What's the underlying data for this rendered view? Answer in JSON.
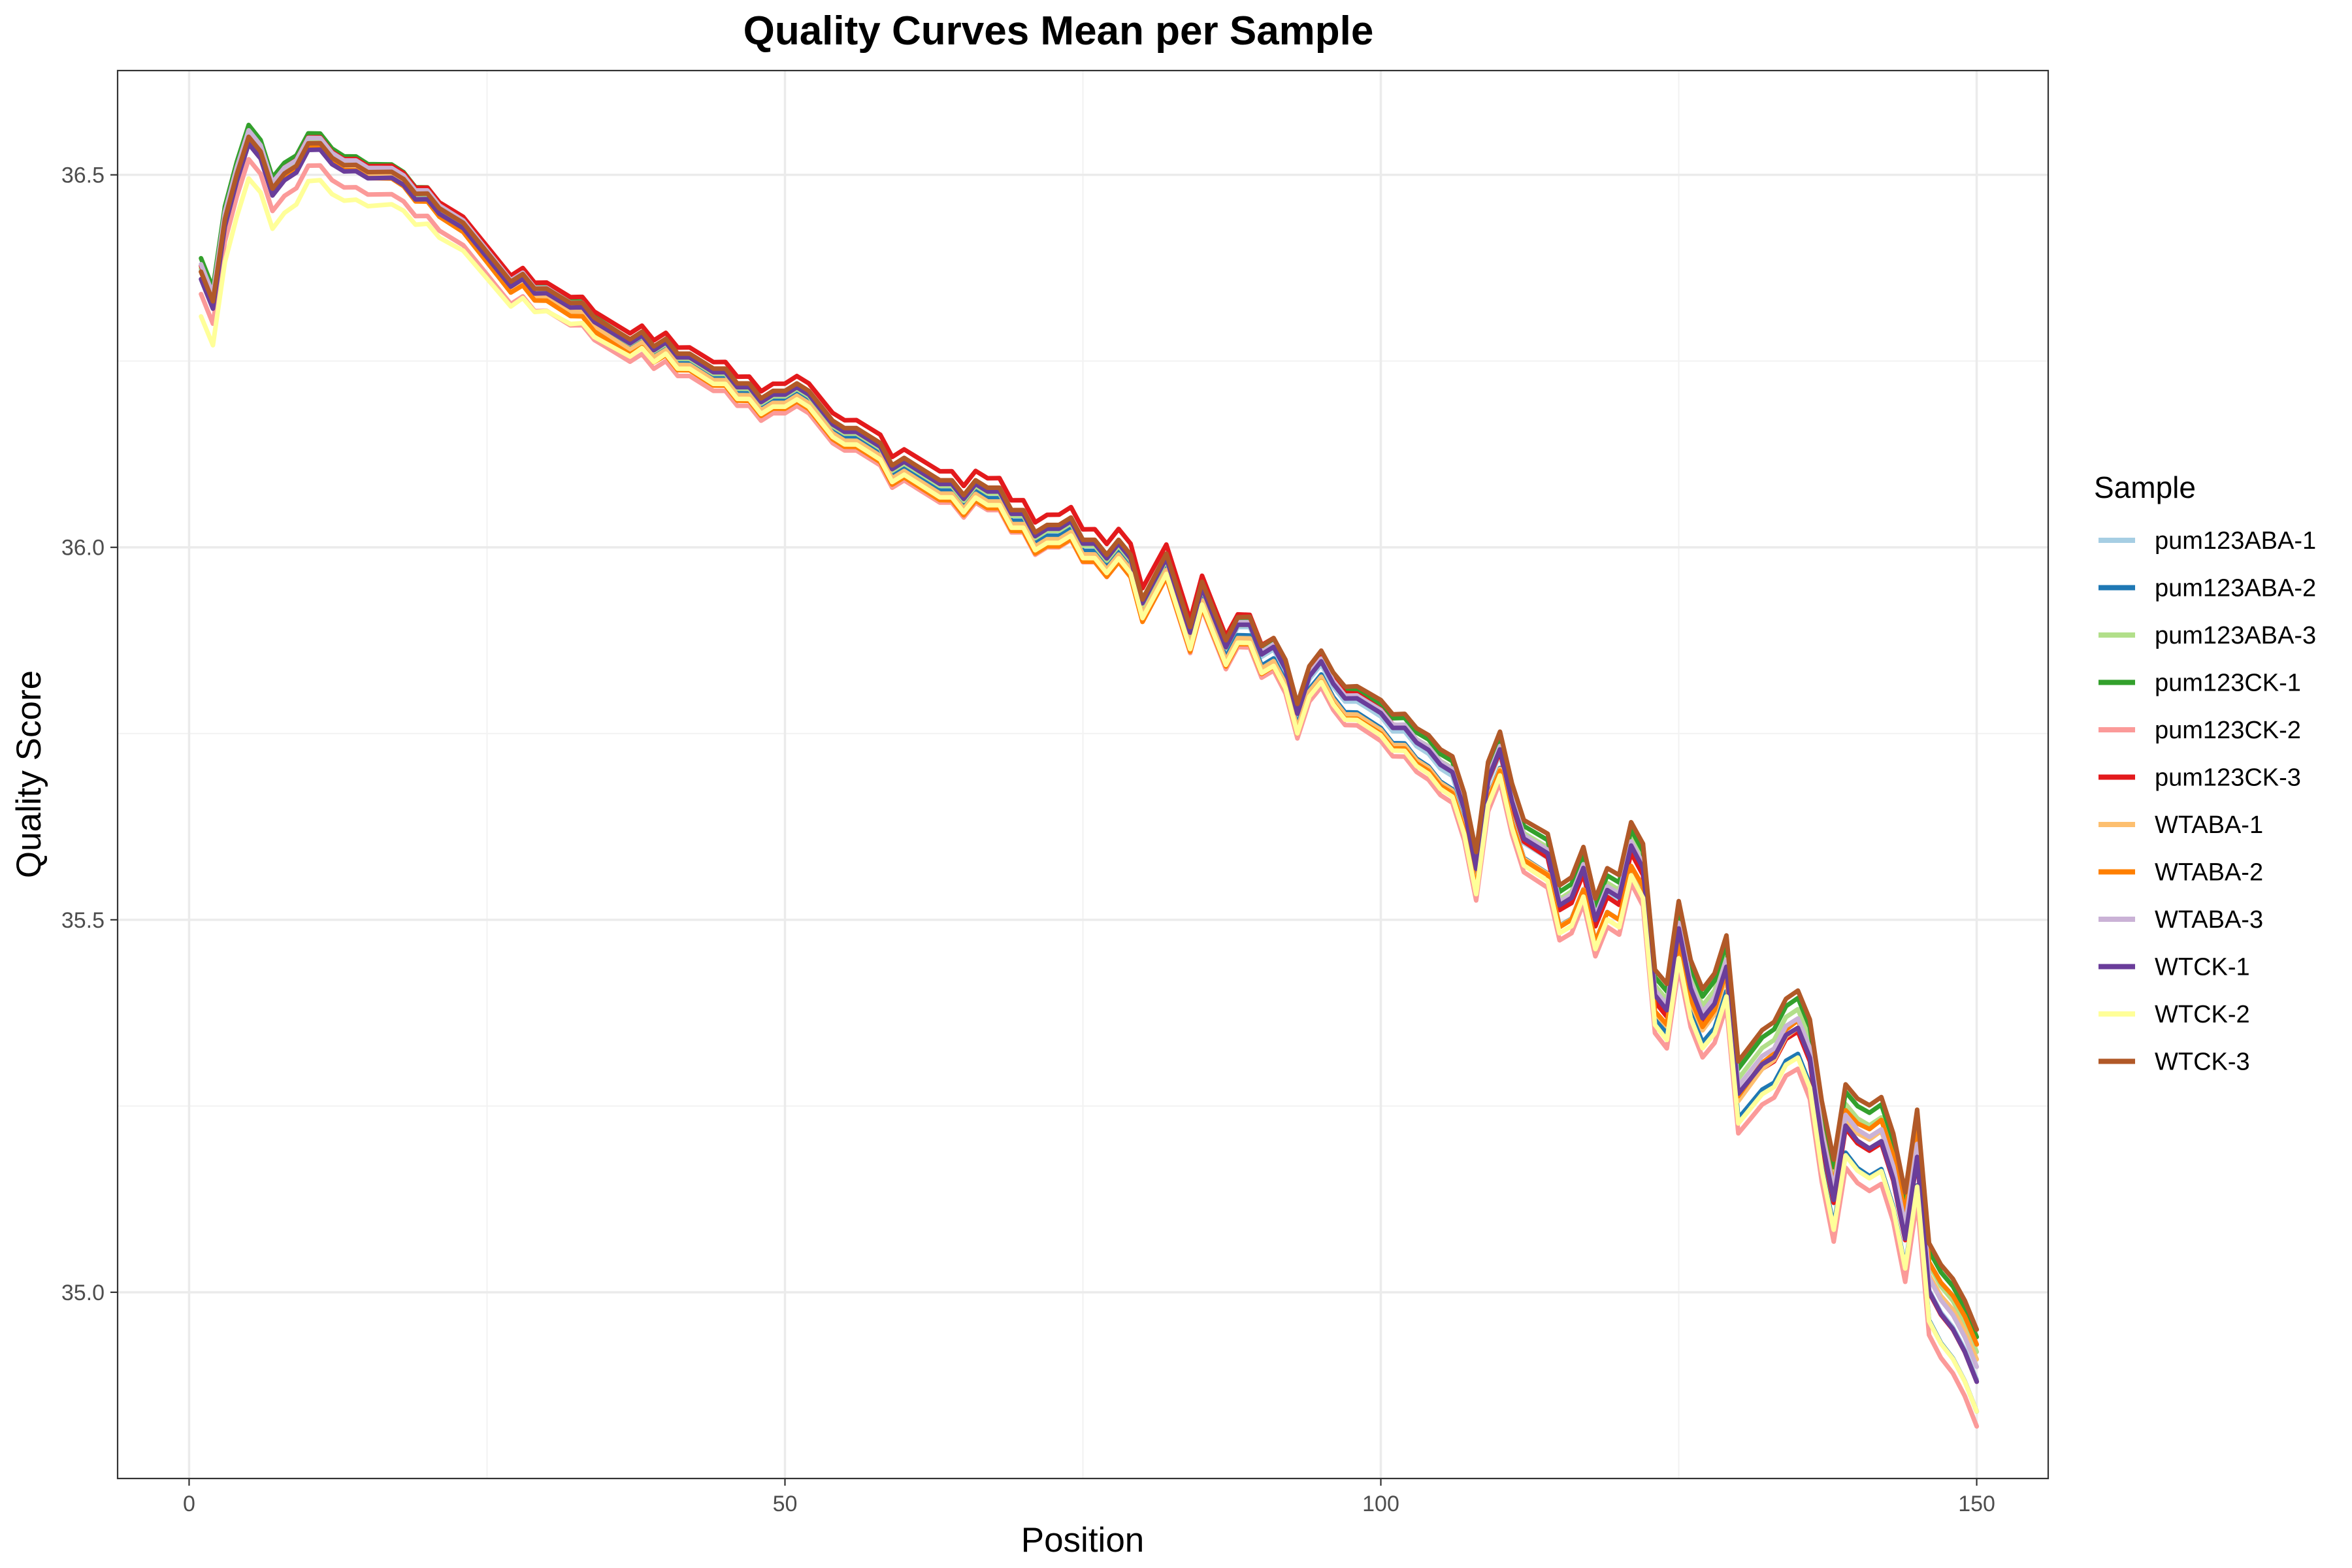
{
  "chart_data": {
    "type": "line",
    "title": "Quality Curves Mean per Sample",
    "xlabel": "Position",
    "ylabel": "Quality Score",
    "xlim": [
      -6,
      156
    ],
    "ylim": [
      34.75,
      36.64
    ],
    "xticks": [
      0,
      50,
      100,
      150
    ],
    "xtick_labels": [
      "0",
      "50",
      "100",
      "150"
    ],
    "yticks": [
      35.0,
      35.5,
      36.0,
      36.5
    ],
    "ytick_labels": [
      "35.0",
      "35.5",
      "36.0",
      "36.5"
    ],
    "grid": true,
    "legend_title": "Sample",
    "legend_position": "right",
    "x": [
      1,
      2,
      3,
      4,
      5,
      6,
      7,
      8,
      9,
      10,
      11,
      12,
      13,
      14,
      15,
      16,
      17,
      18,
      19,
      20,
      21,
      22,
      23,
      24,
      25,
      26,
      27,
      28,
      29,
      30,
      31,
      32,
      33,
      34,
      35,
      36,
      37,
      38,
      39,
      40,
      41,
      42,
      43,
      44,
      45,
      46,
      47,
      48,
      49,
      50,
      51,
      52,
      53,
      54,
      55,
      56,
      57,
      58,
      59,
      60,
      61,
      62,
      63,
      64,
      65,
      66,
      67,
      68,
      69,
      70,
      71,
      72,
      73,
      74,
      75,
      76,
      77,
      78,
      79,
      80,
      81,
      82,
      83,
      84,
      85,
      86,
      87,
      88,
      89,
      90,
      91,
      92,
      93,
      94,
      95,
      96,
      97,
      98,
      99,
      100,
      101,
      102,
      103,
      104,
      105,
      106,
      107,
      108,
      109,
      110,
      111,
      112,
      113,
      114,
      115,
      116,
      117,
      118,
      119,
      120,
      121,
      122,
      123,
      124,
      125,
      126,
      127,
      128,
      129,
      130,
      131,
      132,
      133,
      134,
      135,
      136,
      137,
      138,
      139,
      140,
      141,
      142,
      143,
      144,
      145,
      146,
      147,
      148,
      149,
      150
    ],
    "base_curve": [
      36.37,
      36.33,
      36.44,
      36.5,
      36.55,
      36.53,
      36.48,
      36.5,
      36.51,
      36.54,
      36.54,
      36.52,
      36.51,
      36.51,
      36.5,
      36.5,
      36.5,
      36.49,
      36.47,
      36.47,
      36.45,
      36.44,
      36.43,
      36.41,
      36.39,
      36.37,
      36.35,
      36.36,
      36.34,
      36.34,
      36.33,
      36.32,
      36.32,
      36.3,
      36.29,
      36.28,
      36.27,
      36.28,
      36.26,
      36.27,
      36.25,
      36.25,
      36.24,
      36.23,
      36.23,
      36.21,
      36.21,
      36.19,
      36.2,
      36.2,
      36.21,
      36.2,
      36.18,
      36.16,
      36.15,
      36.15,
      36.14,
      36.13,
      36.1,
      36.11,
      36.1,
      36.09,
      36.08,
      36.08,
      36.06,
      36.08,
      36.07,
      36.07,
      36.04,
      36.04,
      36.01,
      36.02,
      36.02,
      36.03,
      36.0,
      36.0,
      35.98,
      36.0,
      35.98,
      35.92,
      35.95,
      35.98,
      35.93,
      35.88,
      35.94,
      35.9,
      35.86,
      35.89,
      35.89,
      35.85,
      35.86,
      35.83,
      35.77,
      35.82,
      35.84,
      35.81,
      35.79,
      35.79,
      35.78,
      35.77,
      35.75,
      35.75,
      35.73,
      35.72,
      35.7,
      35.69,
      35.64,
      35.56,
      35.68,
      35.72,
      35.65,
      35.6,
      35.59,
      35.58,
      35.51,
      35.52,
      35.56,
      35.49,
      35.53,
      35.52,
      35.59,
      35.56,
      35.39,
      35.37,
      35.48,
      35.4,
      35.36,
      35.38,
      35.43,
      35.26,
      35.28,
      35.3,
      35.31,
      35.34,
      35.35,
      35.31,
      35.2,
      35.12,
      35.22,
      35.2,
      35.19,
      35.2,
      35.15,
      35.07,
      35.18,
      35.0,
      34.97,
      34.95,
      34.92,
      34.88
    ],
    "series": [
      {
        "name": "pum123ABA-1",
        "color": "#a6cee3",
        "offset": [
          0.003,
          0.003,
          0.003,
          0.003,
          0.003
        ]
      },
      {
        "name": "pum123ABA-2",
        "color": "#1f78b4",
        "offset": [
          0.0,
          -0.002,
          -0.005,
          -0.02,
          -0.04
        ]
      },
      {
        "name": "pum123ABA-3",
        "color": "#b2df8a",
        "offset": [
          0.005,
          0.003,
          0.002,
          0.02,
          0.04
        ]
      },
      {
        "name": "pum123CK-1",
        "color": "#33a02c",
        "offset": [
          0.018,
          0.008,
          0.01,
          0.03,
          0.06
        ]
      },
      {
        "name": "pum123CK-2",
        "color": "#fb9a99",
        "offset": [
          -0.03,
          -0.02,
          -0.02,
          -0.04,
          -0.06
        ]
      },
      {
        "name": "pum123CK-3",
        "color": "#e31a1c",
        "offset": [
          0.008,
          0.018,
          0.025,
          0.0,
          0.0
        ]
      },
      {
        "name": "WTABA-1",
        "color": "#fdbf6f",
        "offset": [
          0.0,
          -0.005,
          -0.01,
          -0.02,
          0.03
        ]
      },
      {
        "name": "WTABA-2",
        "color": "#ff7f00",
        "offset": [
          0.0,
          -0.012,
          -0.02,
          -0.02,
          0.05
        ]
      },
      {
        "name": "WTABA-3",
        "color": "#cab2d6",
        "offset": [
          0.01,
          0.008,
          0.008,
          0.015,
          0.02
        ]
      },
      {
        "name": "WTCK-1",
        "color": "#6a3d9a",
        "offset": [
          -0.01,
          0.005,
          0.005,
          0.01,
          0.0
        ]
      },
      {
        "name": "WTCK-2",
        "color": "#ffff99",
        "offset": [
          -0.06,
          -0.01,
          -0.015,
          -0.03,
          -0.04
        ]
      },
      {
        "name": "WTCK-3",
        "color": "#b15928",
        "offset": [
          0.0,
          0.01,
          0.01,
          0.04,
          0.07
        ]
      }
    ]
  }
}
